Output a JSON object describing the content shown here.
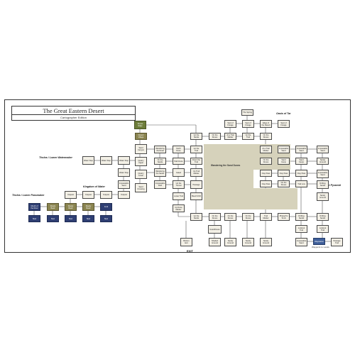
{
  "header": {
    "title": "The Great Eastern Desert",
    "subtitle": "Cartographer Edition"
  },
  "labels": {
    "region_name": "Wandering the Sand Dunes",
    "oasis": "Oasis of Tar",
    "tholos_water": "Tholos / Lower Watermaker",
    "kingdom_water": "Kingdom of Water",
    "tholos_lower": "Tholos / Lower Passmaker",
    "lost_pyramid": "Lost Pyramid",
    "exit": "EXIT",
    "waypoint": "Waypoint to Lands"
  },
  "colors": {
    "region": "#d6d2bb",
    "plain": "#f3f0e6",
    "olive": "#8a8450",
    "navy": "#2f3f73",
    "green": "#6d7d3a",
    "blue": "#3f5f9a",
    "border": "#333333"
  },
  "nodes": {
    "start": "Dunes Edge",
    "village": "Desert Village",
    "canyon": "Sand Canyon",
    "quarry_up": "Quarry Upper",
    "quarry_low": "Quarry Lower",
    "sand_cr": "Sand Crossing",
    "wand_rt": "Wandering the Road",
    "up_sand": "Up the Sands",
    "north_dune": "North Dune",
    "path_dune": "Path Dune",
    "on_sand": "On the Sands",
    "dunes_a": "On the Dunes",
    "trail_up": "Up the Trail",
    "trail_dn": "Down the Trail",
    "trail_end": "Trail End",
    "wand_sands": "Wandering the Sands",
    "gated": "Gated",
    "up_trail_low": "Up Trail Marker",
    "imp_path": "Impassable Path",
    "up_tunnel": "Up the Tunnel",
    "passage": "Passage",
    "lower_trail": "Lower Trail",
    "beach_drift": "Beach Drift",
    "imp_sand": "Impassable Sand",
    "up_dune_m": "Up Dune Marker",
    "quicksand": "Quicksand",
    "guard": "Guardhouse",
    "loose": "Loose Sands",
    "tower": "Tower Stair",
    "up_trail_r": "Up the Trail",
    "dunes_b": "On the Dunes",
    "at_trail": "At a Trail Marker",
    "clay_a": "Clay Pass",
    "clay_b": "Clay Pass",
    "clay_c": "Clay Pass",
    "dune_c": "On the Dunes",
    "dune_d": "On the Dunes",
    "dune_e": "On the Dunes",
    "at_trail_r": "At a Trail Marker",
    "near_sand": "Near the Sand",
    "sandy_a": "Sandy Ground",
    "sandy_b": "Sandy Ground",
    "sandy_c": "Sandy Ground",
    "sand_cmp": "Sand Camp",
    "sand_cmp_b": "Sand Camp",
    "imp_r1": "Impassable Sand",
    "imp_r2": "Impassable Sand",
    "imp_r3": "Impassable Sand",
    "tr_low": "Trail Low",
    "drift_a": "Drifting Sands",
    "drift_b": "Drifting Sands",
    "drift_c": "Drifting Sands",
    "trail_mark": "Trail Marker",
    "pharaoh": "Pharaoh's Tomb",
    "lookout": "Lookout Trail",
    "sand_fl": "Sand Flats",
    "lookout_b": "Lookout Trail",
    "peak": "Peak",
    "temple": "Temple",
    "out_a": "Outpost",
    "out_b": "Outpost",
    "out_c": "Outpost",
    "out_d": "Outpost",
    "imp_out": "Impassable Sand",
    "ws_a": "Water Stop",
    "ws_b": "Water Stop",
    "ws_c": "Water Stop",
    "ws_d": "Water Stop",
    "imp_w": "Impassable Sand",
    "gate_w": "Water Gate",
    "tl_a": "Mouth of the River",
    "tl_b": "Reedy Bank",
    "tl_c": "Reedy Bank",
    "tl_d": "Reedy Bank",
    "tl_e": "Ford",
    "bt_a": "Stair",
    "bt_b": "Stair",
    "bt_c": "Stair",
    "bt_d": "Stair",
    "bt_e": "Stair",
    "ex_a": "Bottom Exit",
    "ex_b": "Shaded Ground",
    "ex_c": "Sandy Ground",
    "ex_d": "Sandy Ground",
    "ex_e": "Sandy Ground",
    "ex_f": "Impassable Sand",
    "ex_g": "Waystation",
    "ex_h": "Passage Trail",
    "top_a": "The Spring",
    "top_b": "Spot of Forage",
    "top_c": "Spot of Forage",
    "top_d": "Edge of the Desert",
    "top_e": "Spot of Forage"
  }
}
